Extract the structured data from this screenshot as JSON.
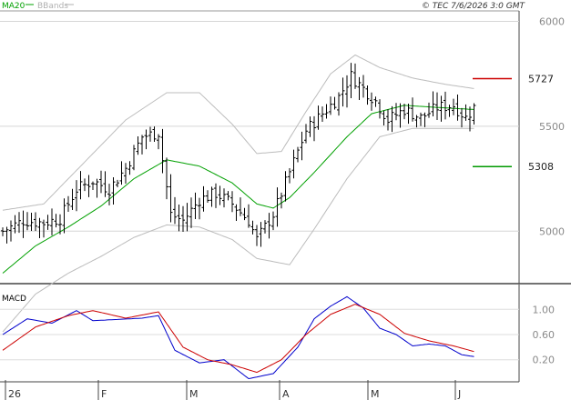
{
  "chart_data": [
    {
      "type": "bar",
      "subtype": "ohlc-price-chart",
      "legend": [
        {
          "name": "MA20",
          "color": "#00a000"
        },
        {
          "name": "BBands",
          "color": "#b0b0b0"
        }
      ],
      "copyright": "© TEC 7/6/2026 3:0 GMT",
      "y_ticks": [
        "6000",
        "5500",
        "5000"
      ],
      "ylim": [
        4750,
        6050
      ],
      "x_ticks": [
        "26",
        "F",
        "M",
        "A",
        "M",
        "J"
      ],
      "grid": true,
      "annotations": [
        {
          "label": "5727",
          "price": 5727,
          "color": "#cc0000"
        },
        {
          "label": "5308",
          "price": 5308,
          "color": "#009900"
        }
      ],
      "price_path": [
        {
          "bar": 0,
          "close": 5000
        },
        {
          "bar": 5,
          "close": 5050
        },
        {
          "bar": 10,
          "close": 5040
        },
        {
          "bar": 14,
          "close": 5060
        },
        {
          "bar": 18,
          "close": 5200
        },
        {
          "bar": 22,
          "close": 5240
        },
        {
          "bar": 26,
          "close": 5200
        },
        {
          "bar": 30,
          "close": 5300
        },
        {
          "bar": 34,
          "close": 5450
        },
        {
          "bar": 38,
          "close": 5470
        },
        {
          "bar": 41,
          "close": 5080
        },
        {
          "bar": 44,
          "close": 5050
        },
        {
          "bar": 48,
          "close": 5150
        },
        {
          "bar": 52,
          "close": 5180
        },
        {
          "bar": 56,
          "close": 5130
        },
        {
          "bar": 60,
          "close": 5050
        },
        {
          "bar": 62,
          "close": 4960
        },
        {
          "bar": 66,
          "close": 5080
        },
        {
          "bar": 70,
          "close": 5280
        },
        {
          "bar": 74,
          "close": 5480
        },
        {
          "bar": 78,
          "close": 5560
        },
        {
          "bar": 82,
          "close": 5640
        },
        {
          "bar": 85,
          "close": 5740
        },
        {
          "bar": 88,
          "close": 5680
        },
        {
          "bar": 91,
          "close": 5620
        },
        {
          "bar": 94,
          "close": 5530
        },
        {
          "bar": 98,
          "close": 5580
        },
        {
          "bar": 102,
          "close": 5540
        },
        {
          "bar": 106,
          "close": 5590
        },
        {
          "bar": 110,
          "close": 5600
        },
        {
          "bar": 113,
          "close": 5540
        },
        {
          "bar": 115,
          "close": 5590
        }
      ],
      "ma20_path": [
        {
          "bar": 0,
          "value": 4800
        },
        {
          "bar": 8,
          "value": 4930
        },
        {
          "bar": 16,
          "value": 5020
        },
        {
          "bar": 24,
          "value": 5120
        },
        {
          "bar": 32,
          "value": 5250
        },
        {
          "bar": 40,
          "value": 5340
        },
        {
          "bar": 48,
          "value": 5310
        },
        {
          "bar": 56,
          "value": 5230
        },
        {
          "bar": 62,
          "value": 5130
        },
        {
          "bar": 66,
          "value": 5110
        },
        {
          "bar": 70,
          "value": 5160
        },
        {
          "bar": 76,
          "value": 5280
        },
        {
          "bar": 84,
          "value": 5450
        },
        {
          "bar": 90,
          "value": 5560
        },
        {
          "bar": 98,
          "value": 5600
        },
        {
          "bar": 106,
          "value": 5590
        },
        {
          "bar": 115,
          "value": 5580
        }
      ],
      "bband_upper_path": [
        {
          "bar": 0,
          "value": 5100
        },
        {
          "bar": 10,
          "value": 5130
        },
        {
          "bar": 20,
          "value": 5330
        },
        {
          "bar": 30,
          "value": 5530
        },
        {
          "bar": 40,
          "value": 5660
        },
        {
          "bar": 48,
          "value": 5660
        },
        {
          "bar": 56,
          "value": 5510
        },
        {
          "bar": 62,
          "value": 5370
        },
        {
          "bar": 68,
          "value": 5380
        },
        {
          "bar": 74,
          "value": 5570
        },
        {
          "bar": 80,
          "value": 5750
        },
        {
          "bar": 86,
          "value": 5840
        },
        {
          "bar": 92,
          "value": 5780
        },
        {
          "bar": 100,
          "value": 5730
        },
        {
          "bar": 108,
          "value": 5700
        },
        {
          "bar": 115,
          "value": 5680
        }
      ],
      "bband_lower_path": [
        {
          "bar": 0,
          "value": 4520
        },
        {
          "bar": 8,
          "value": 4700
        },
        {
          "bar": 16,
          "value": 4800
        },
        {
          "bar": 24,
          "value": 4880
        },
        {
          "bar": 32,
          "value": 4970
        },
        {
          "bar": 40,
          "value": 5030
        },
        {
          "bar": 48,
          "value": 5020
        },
        {
          "bar": 56,
          "value": 4960
        },
        {
          "bar": 62,
          "value": 4870
        },
        {
          "bar": 70,
          "value": 4840
        },
        {
          "bar": 76,
          "value": 5010
        },
        {
          "bar": 84,
          "value": 5250
        },
        {
          "bar": 92,
          "value": 5450
        },
        {
          "bar": 100,
          "value": 5490
        },
        {
          "bar": 108,
          "value": 5490
        },
        {
          "bar": 115,
          "value": 5490
        }
      ]
    },
    {
      "type": "line",
      "title": "MACD",
      "y_ticks": [
        "1.00",
        "0.60",
        "0.20"
      ],
      "ylim": [
        -0.15,
        1.35
      ],
      "series": [
        {
          "color": "#0000cc",
          "points": [
            {
              "bar": 0,
              "value": 0.6
            },
            {
              "bar": 6,
              "value": 0.85
            },
            {
              "bar": 12,
              "value": 0.78
            },
            {
              "bar": 18,
              "value": 0.98
            },
            {
              "bar": 22,
              "value": 0.82
            },
            {
              "bar": 28,
              "value": 0.84
            },
            {
              "bar": 34,
              "value": 0.86
            },
            {
              "bar": 38,
              "value": 0.9
            },
            {
              "bar": 42,
              "value": 0.35
            },
            {
              "bar": 48,
              "value": 0.15
            },
            {
              "bar": 54,
              "value": 0.2
            },
            {
              "bar": 60,
              "value": -0.1
            },
            {
              "bar": 66,
              "value": -0.02
            },
            {
              "bar": 72,
              "value": 0.4
            },
            {
              "bar": 76,
              "value": 0.85
            },
            {
              "bar": 80,
              "value": 1.05
            },
            {
              "bar": 84,
              "value": 1.2
            },
            {
              "bar": 88,
              "value": 1.02
            },
            {
              "bar": 92,
              "value": 0.7
            },
            {
              "bar": 96,
              "value": 0.6
            },
            {
              "bar": 100,
              "value": 0.42
            },
            {
              "bar": 104,
              "value": 0.45
            },
            {
              "bar": 108,
              "value": 0.42
            },
            {
              "bar": 112,
              "value": 0.28
            },
            {
              "bar": 115,
              "value": 0.25
            }
          ]
        },
        {
          "color": "#cc0000",
          "points": [
            {
              "bar": 0,
              "value": 0.35
            },
            {
              "bar": 8,
              "value": 0.72
            },
            {
              "bar": 16,
              "value": 0.9
            },
            {
              "bar": 22,
              "value": 0.98
            },
            {
              "bar": 30,
              "value": 0.86
            },
            {
              "bar": 38,
              "value": 0.96
            },
            {
              "bar": 44,
              "value": 0.4
            },
            {
              "bar": 50,
              "value": 0.2
            },
            {
              "bar": 56,
              "value": 0.12
            },
            {
              "bar": 62,
              "value": 0.0
            },
            {
              "bar": 68,
              "value": 0.2
            },
            {
              "bar": 74,
              "value": 0.6
            },
            {
              "bar": 80,
              "value": 0.92
            },
            {
              "bar": 86,
              "value": 1.08
            },
            {
              "bar": 92,
              "value": 0.92
            },
            {
              "bar": 98,
              "value": 0.62
            },
            {
              "bar": 104,
              "value": 0.5
            },
            {
              "bar": 110,
              "value": 0.42
            },
            {
              "bar": 115,
              "value": 0.33
            }
          ]
        }
      ]
    }
  ]
}
